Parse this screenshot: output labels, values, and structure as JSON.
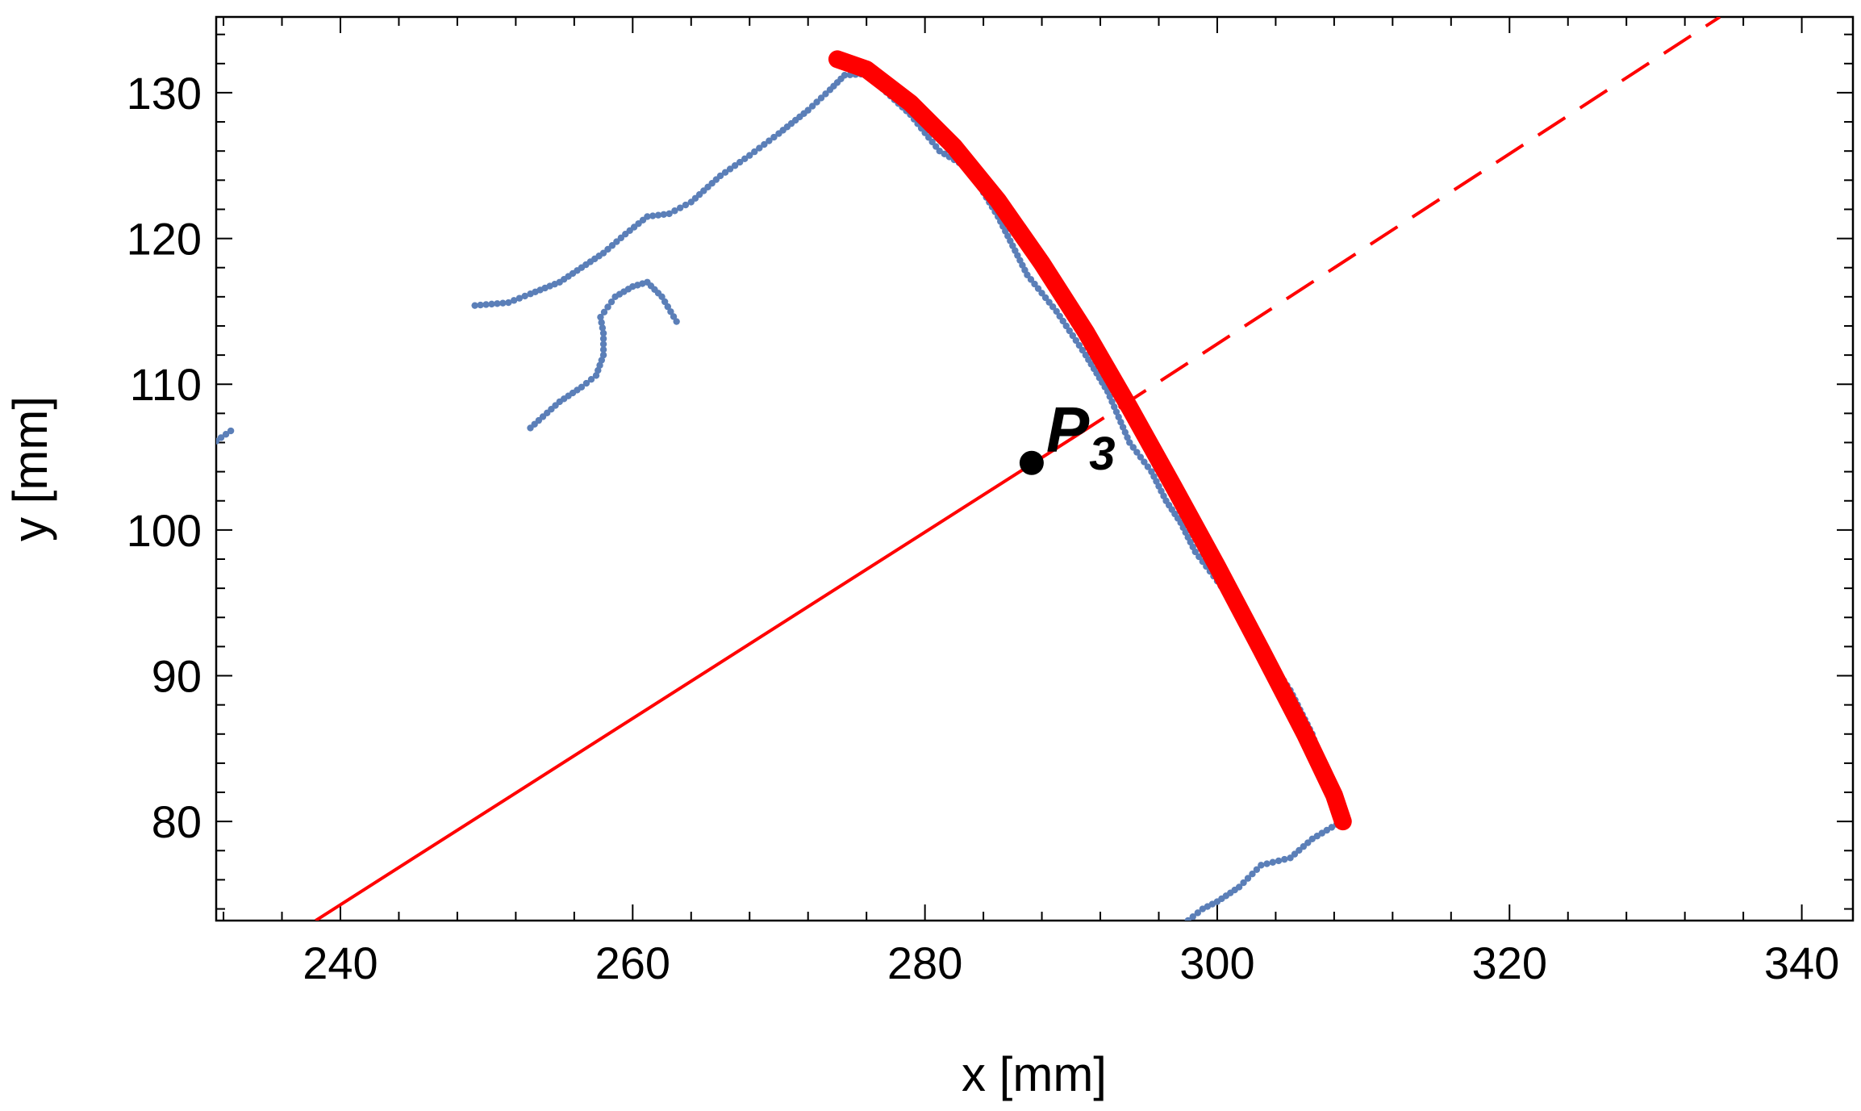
{
  "chart_data": {
    "type": "scatter",
    "xlabel": "x [mm]",
    "ylabel": "y [mm]",
    "xlim": [
      231.5,
      343.5
    ],
    "ylim": [
      73.2,
      135.2
    ],
    "x_ticks": [
      240,
      260,
      280,
      300,
      320,
      340
    ],
    "y_ticks": [
      80,
      90,
      100,
      110,
      120,
      130
    ],
    "x_minor_step": 4,
    "y_minor_step": 2,
    "grid": false,
    "colors": {
      "scan": "#5b7fb8",
      "fit": "#ff0000",
      "point": "#000000"
    },
    "series": [
      {
        "name": "scan-upper-contour",
        "values": [
          [
            249.2,
            115.4
          ],
          [
            251.5,
            115.6
          ],
          [
            253.0,
            116.2
          ],
          [
            255.0,
            117.0
          ],
          [
            256.5,
            118.0
          ],
          [
            258.0,
            119.0
          ],
          [
            259.5,
            120.3
          ],
          [
            261.0,
            121.5
          ],
          [
            262.5,
            121.7
          ],
          [
            264.0,
            122.5
          ],
          [
            266.0,
            124.3
          ],
          [
            268.0,
            125.7
          ],
          [
            270.0,
            127.2
          ],
          [
            272.0,
            128.8
          ],
          [
            273.5,
            130.2
          ],
          [
            274.5,
            131.2
          ],
          [
            276.0,
            131.3
          ]
        ]
      },
      {
        "name": "scan-hook",
        "values": [
          [
            253.0,
            107.0
          ],
          [
            255.0,
            108.8
          ],
          [
            256.5,
            109.8
          ],
          [
            257.5,
            110.6
          ],
          [
            258.0,
            112.0
          ],
          [
            258.0,
            113.5
          ],
          [
            257.8,
            114.6
          ],
          [
            258.8,
            116.0
          ],
          [
            260.0,
            116.7
          ],
          [
            261.0,
            117.0
          ],
          [
            262.0,
            116.0
          ],
          [
            263.0,
            114.3
          ]
        ]
      },
      {
        "name": "scan-left-stub",
        "values": [
          [
            231.5,
            106.1
          ],
          [
            232.5,
            106.8
          ]
        ]
      },
      {
        "name": "scan-arc",
        "values": [
          [
            276.0,
            131.3
          ],
          [
            279.0,
            128.5
          ],
          [
            281.0,
            126.0
          ],
          [
            283.0,
            124.8
          ],
          [
            285.0,
            121.5
          ],
          [
            287.0,
            117.5
          ],
          [
            289.0,
            115.0
          ],
          [
            291.0,
            112.0
          ],
          [
            292.5,
            109.5
          ],
          [
            294.0,
            106.0
          ],
          [
            295.5,
            104.0
          ],
          [
            296.5,
            102.0
          ],
          [
            297.5,
            100.5
          ],
          [
            298.5,
            98.5
          ],
          [
            300.0,
            96.5
          ],
          [
            301.5,
            94.5
          ],
          [
            303.0,
            92.0
          ],
          [
            305.0,
            89.0
          ],
          [
            306.5,
            86.0
          ],
          [
            307.5,
            83.0
          ],
          [
            308.5,
            81.0
          ],
          [
            308.5,
            80.0
          ]
        ]
      },
      {
        "name": "scan-lower-tail",
        "values": [
          [
            308.5,
            80.0
          ],
          [
            306.5,
            78.8
          ],
          [
            305.0,
            77.5
          ],
          [
            303.0,
            77.0
          ],
          [
            301.5,
            75.5
          ],
          [
            300.0,
            74.5
          ],
          [
            299.0,
            74.0
          ],
          [
            298.0,
            73.2
          ]
        ]
      }
    ],
    "fit_curve": {
      "name": "fitted-arc",
      "values": [
        [
          274.0,
          132.3
        ],
        [
          276.0,
          131.6
        ],
        [
          279.0,
          129.3
        ],
        [
          282.0,
          126.3
        ],
        [
          285.0,
          122.6
        ],
        [
          288.0,
          118.3
        ],
        [
          291.0,
          113.6
        ],
        [
          294.0,
          108.4
        ],
        [
          297.0,
          103.0
        ],
        [
          300.0,
          97.5
        ],
        [
          303.0,
          91.8
        ],
        [
          306.0,
          86.0
        ],
        [
          308.0,
          81.8
        ],
        [
          308.6,
          80.0
        ]
      ]
    },
    "ray_solid": {
      "from": [
        238.3,
        73.2
      ],
      "to": [
        290.4,
        106.5
      ]
    },
    "ray_dashed": {
      "from": [
        290.4,
        106.5
      ],
      "to": [
        334.4,
        135.2
      ]
    },
    "point": {
      "label_main": "P",
      "label_sub": "3",
      "x": 287.3,
      "y": 104.6
    }
  }
}
